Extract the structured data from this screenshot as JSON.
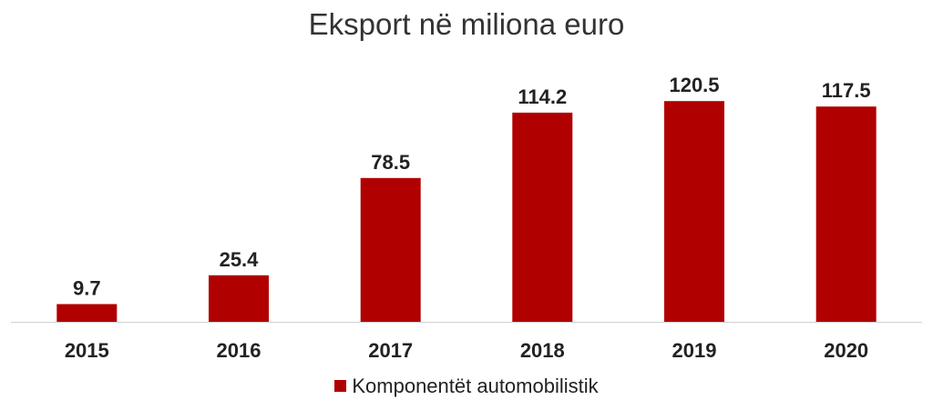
{
  "chart_data": {
    "type": "bar",
    "title": "Eksport në miliona euro",
    "categories": [
      "2015",
      "2016",
      "2017",
      "2018",
      "2019",
      "2020"
    ],
    "series": [
      {
        "name": "Komponentët automobilistik",
        "values": [
          9.7,
          25.4,
          78.5,
          114.2,
          120.5,
          117.5
        ]
      }
    ],
    "data_labels": [
      "9.7",
      "25.4",
      "78.5",
      "114.2",
      "120.5",
      "117.5"
    ],
    "ylim": [
      0,
      132
    ],
    "grid": false,
    "legend_position": "bottom",
    "colors": {
      "bar": "#b00000",
      "axis": "#d0d0d0",
      "label": "#222222"
    }
  }
}
